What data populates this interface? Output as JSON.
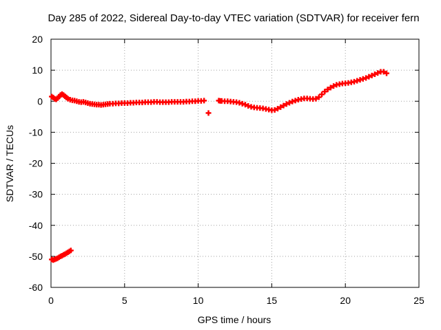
{
  "chart_data": {
    "type": "scatter",
    "title": "Day 285 of 2022, Sidereal Day-to-day VTEC variation (SDTVAR) for receiver fern",
    "xlabel": "GPS time / hours",
    "ylabel": "SDTVAR / TECUs",
    "xlim": [
      0,
      25
    ],
    "ylim": [
      -60,
      20
    ],
    "xticks": [
      0,
      5,
      10,
      15,
      20,
      25
    ],
    "yticks": [
      -60,
      -50,
      -40,
      -30,
      -20,
      -10,
      0,
      10,
      20
    ],
    "grid": true,
    "marker": "+",
    "colors": {
      "points": "#ff0000",
      "axes": "#000000",
      "grid": "#a0a0a0"
    },
    "series": [
      {
        "name": "SDTVAR",
        "x": [
          0.05,
          0.15,
          0.25,
          0.35,
          0.45,
          0.55,
          0.65,
          0.75,
          0.85,
          0.95,
          1.05,
          1.15,
          1.3,
          1.45,
          1.6,
          1.75,
          1.9,
          2.05,
          2.2,
          2.35,
          2.5,
          2.65,
          2.8,
          2.95,
          3.1,
          3.25,
          3.4,
          3.55,
          3.7,
          3.85,
          4.0,
          4.2,
          4.4,
          4.6,
          4.8,
          5.0,
          5.2,
          5.4,
          5.6,
          5.8,
          6.0,
          6.2,
          6.4,
          6.6,
          6.8,
          7.0,
          7.2,
          7.4,
          7.6,
          7.8,
          8.0,
          8.2,
          8.4,
          8.6,
          8.8,
          9.0,
          9.2,
          9.4,
          9.6,
          9.8,
          10.0,
          10.2,
          10.4,
          10.7,
          11.4,
          11.5,
          11.6,
          11.8,
          12.0,
          12.2,
          12.4,
          12.6,
          12.8,
          13.0,
          13.2,
          13.4,
          13.6,
          13.8,
          14.0,
          14.2,
          14.4,
          14.6,
          14.8,
          15.0,
          15.2,
          15.4,
          15.6,
          15.8,
          16.0,
          16.2,
          16.4,
          16.6,
          16.8,
          17.0,
          17.2,
          17.4,
          17.6,
          17.8,
          18.0,
          18.2,
          18.4,
          18.6,
          18.8,
          19.0,
          19.2,
          19.4,
          19.6,
          19.8,
          20.0,
          20.2,
          20.4,
          20.6,
          20.8,
          21.0,
          21.2,
          21.4,
          21.6,
          21.8,
          22.0,
          22.2,
          22.4,
          22.6,
          22.8,
          0.05,
          0.15,
          0.25,
          0.35,
          0.45,
          0.55,
          0.65,
          0.75,
          0.85,
          0.95,
          1.05,
          1.15,
          1.25,
          1.35
        ],
        "y": [
          1.5,
          1.2,
          0.8,
          0.6,
          1.0,
          1.5,
          2.0,
          2.3,
          2.0,
          1.6,
          1.2,
          0.8,
          0.5,
          0.3,
          0.2,
          0.0,
          -0.2,
          -0.3,
          -0.2,
          -0.4,
          -0.6,
          -0.8,
          -0.9,
          -1.0,
          -1.1,
          -1.1,
          -1.2,
          -1.1,
          -1.0,
          -0.9,
          -0.8,
          -0.8,
          -0.7,
          -0.7,
          -0.6,
          -0.6,
          -0.6,
          -0.5,
          -0.5,
          -0.4,
          -0.4,
          -0.4,
          -0.3,
          -0.3,
          -0.3,
          -0.2,
          -0.2,
          -0.3,
          -0.3,
          -0.3,
          -0.3,
          -0.2,
          -0.2,
          -0.2,
          -0.2,
          -0.2,
          -0.1,
          -0.1,
          0.0,
          0.0,
          0.1,
          0.1,
          0.2,
          -3.8,
          0.2,
          0.1,
          0.1,
          0.0,
          0.0,
          -0.1,
          -0.2,
          -0.3,
          -0.5,
          -0.8,
          -1.1,
          -1.5,
          -1.8,
          -2.0,
          -2.1,
          -2.2,
          -2.3,
          -2.5,
          -2.7,
          -2.9,
          -2.8,
          -2.4,
          -1.9,
          -1.4,
          -0.9,
          -0.5,
          -0.1,
          0.2,
          0.5,
          0.7,
          0.9,
          0.9,
          0.8,
          0.7,
          0.8,
          1.3,
          2.2,
          3.1,
          3.8,
          4.4,
          4.9,
          5.3,
          5.5,
          5.7,
          5.8,
          5.9,
          6.1,
          6.3,
          6.6,
          6.9,
          7.2,
          7.5,
          7.9,
          8.3,
          8.7,
          9.1,
          9.5,
          9.5,
          9.0,
          -51.0,
          -51.2,
          -51.0,
          -50.8,
          -50.6,
          -50.3,
          -50.0,
          -49.8,
          -49.5,
          -49.3,
          -49.0,
          -48.7,
          -48.4,
          -48.1
        ]
      }
    ]
  }
}
